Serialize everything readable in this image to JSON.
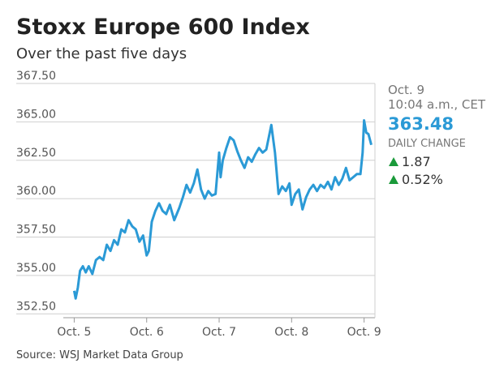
{
  "chart_data": {
    "type": "line",
    "title": "Stoxx Europe 600 Index",
    "subtitle": "Over the past five days",
    "source": "Source: WSJ Market Data Group",
    "annotations": {
      "date": "Oct. 9",
      "time": "10:04 a.m., CET",
      "last": "363.48",
      "change_label": "DAILY CHANGE",
      "change": "1.87",
      "change_pct": "0.52%"
    },
    "color": "#2b9ad6",
    "grid": true,
    "xlim": [
      -0.8,
      4.15
    ],
    "ylim": [
      352.25,
      367.5
    ],
    "xticks": [
      {
        "value": 0,
        "label": "Oct. 5"
      },
      {
        "value": 1,
        "label": "Oct. 6"
      },
      {
        "value": 2,
        "label": "Oct. 7"
      },
      {
        "value": 3,
        "label": "Oct. 8"
      },
      {
        "value": 4,
        "label": "Oct. 9"
      }
    ],
    "yticks": [
      {
        "value": 352.5,
        "label": "352.50"
      },
      {
        "value": 355,
        "label": "355.00"
      },
      {
        "value": 357.5,
        "label": "357.50"
      },
      {
        "value": 360,
        "label": "360.00"
      },
      {
        "value": 362.5,
        "label": "362.50"
      },
      {
        "value": 365,
        "label": "365.00"
      },
      {
        "value": 367.5,
        "label": "367.50"
      }
    ],
    "x": [
      0.0,
      0.02,
      0.05,
      0.08,
      0.12,
      0.16,
      0.2,
      0.25,
      0.3,
      0.35,
      0.4,
      0.45,
      0.5,
      0.55,
      0.6,
      0.65,
      0.7,
      0.75,
      0.8,
      0.85,
      0.9,
      0.95,
      1.0,
      1.03,
      1.07,
      1.12,
      1.17,
      1.22,
      1.27,
      1.32,
      1.38,
      1.45,
      1.5,
      1.55,
      1.6,
      1.65,
      1.7,
      1.75,
      1.8,
      1.85,
      1.9,
      1.95,
      2.0,
      2.02,
      2.05,
      2.1,
      2.15,
      2.2,
      2.25,
      2.3,
      2.35,
      2.4,
      2.45,
      2.5,
      2.55,
      2.6,
      2.65,
      2.72,
      2.77,
      2.82,
      2.87,
      2.92,
      2.97,
      3.0,
      3.05,
      3.1,
      3.15,
      3.2,
      3.25,
      3.3,
      3.35,
      3.4,
      3.45,
      3.5,
      3.55,
      3.6,
      3.65,
      3.7,
      3.75,
      3.8,
      3.85,
      3.9,
      3.95,
      3.98,
      4.0,
      4.03,
      4.06,
      4.1
    ],
    "values": [
      354.0,
      353.5,
      354.2,
      355.3,
      355.6,
      355.2,
      355.6,
      355.1,
      356.0,
      356.2,
      356.0,
      357.0,
      356.6,
      357.3,
      357.0,
      358.0,
      357.8,
      358.6,
      358.2,
      358.0,
      357.2,
      357.6,
      356.3,
      356.6,
      358.5,
      359.2,
      359.7,
      359.2,
      359.0,
      359.6,
      358.6,
      359.4,
      360.1,
      360.9,
      360.4,
      361.0,
      361.9,
      360.6,
      360.0,
      360.5,
      360.2,
      360.3,
      363.0,
      361.4,
      362.5,
      363.3,
      364.0,
      363.8,
      363.1,
      362.5,
      362.0,
      362.7,
      362.4,
      362.9,
      363.3,
      363.0,
      363.2,
      364.8,
      363.0,
      360.3,
      360.8,
      360.5,
      361.0,
      359.6,
      360.3,
      360.6,
      359.3,
      360.1,
      360.6,
      360.9,
      360.5,
      360.9,
      360.7,
      361.1,
      360.6,
      361.4,
      360.9,
      361.3,
      362.0,
      361.2,
      361.4,
      361.6,
      361.6,
      363.0,
      365.1,
      364.3,
      364.2,
      363.5
    ]
  }
}
